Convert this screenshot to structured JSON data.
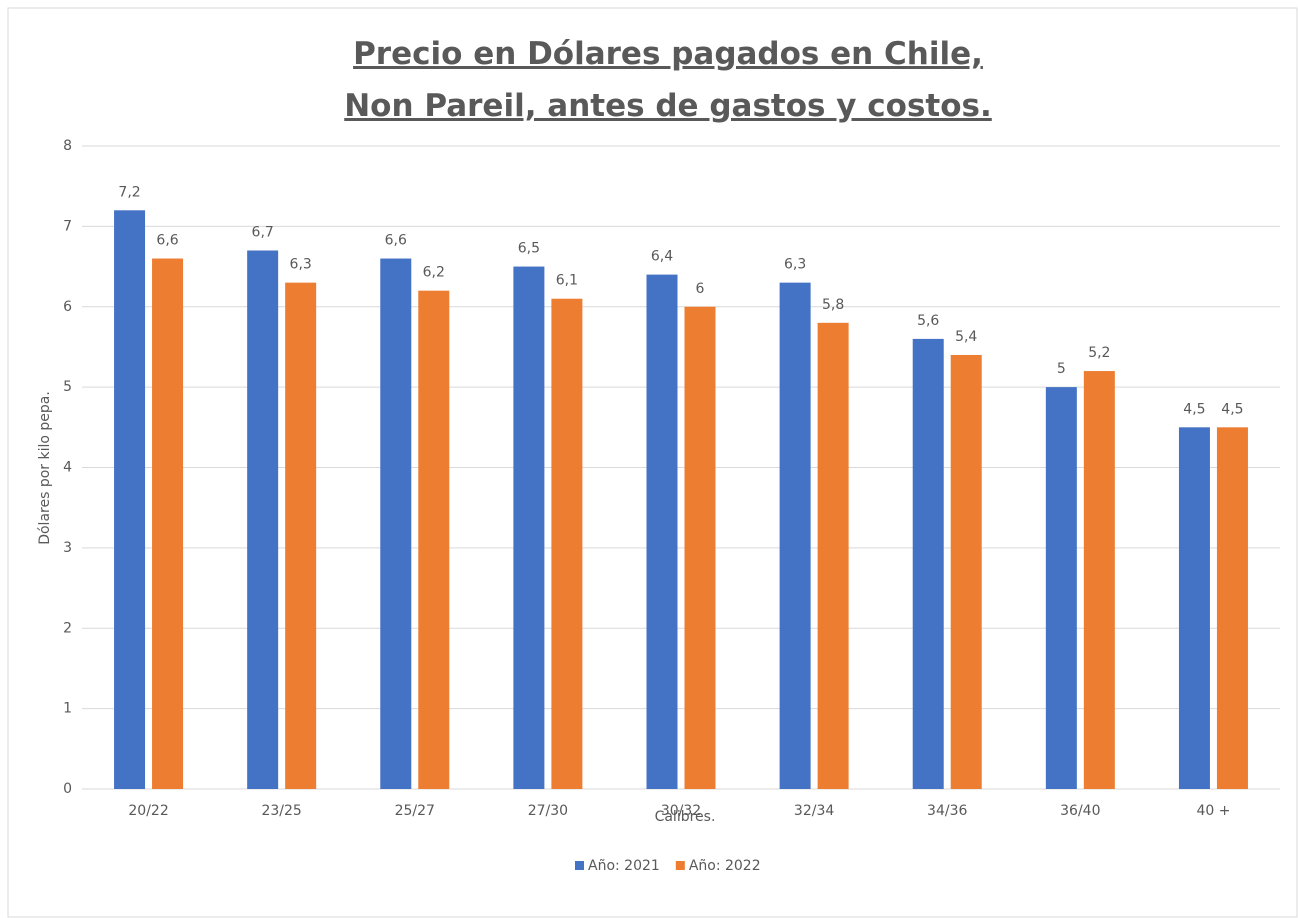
{
  "chart_data": {
    "type": "bar",
    "title": "Precio en Dólares pagados en Chile, Non Pareil,  antes de gastos y costos.",
    "x_label": "Calibres.",
    "y_label": "Dólares por kilo pepa.",
    "categories": [
      "20/22",
      "23/25",
      "25/27",
      "27/30",
      "30/32",
      "32/34",
      "34/36",
      "36/40",
      "40 +"
    ],
    "series": [
      {
        "name": "Año: 2021",
        "color": "#4472c4",
        "values": [
          7.2,
          6.7,
          6.6,
          6.5,
          6.4,
          6.3,
          5.6,
          5,
          4.5
        ],
        "value_labels": [
          "7,2",
          "6,7",
          "6,6",
          "6,5",
          "6,4",
          "6,3",
          "5,6",
          "5",
          "4,5"
        ]
      },
      {
        "name": "Año: 2022",
        "color": "#ed7d31",
        "values": [
          6.6,
          6.3,
          6.2,
          6.1,
          6,
          5.8,
          5.4,
          5.2,
          4.5
        ],
        "value_labels": [
          "6,6",
          "6,3",
          "6,2",
          "6,1",
          "6",
          "5,8",
          "5,4",
          "5,2",
          "4,5"
        ]
      }
    ],
    "ylim": [
      0,
      8
    ],
    "yticks": [
      0,
      1,
      2,
      3,
      4,
      5,
      6,
      7,
      8
    ],
    "grid": true,
    "legend": "bottom"
  }
}
